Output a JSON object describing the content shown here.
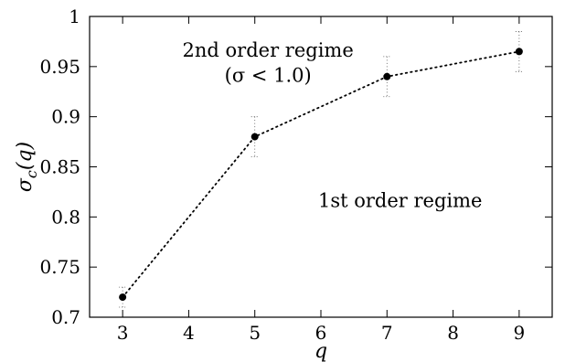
{
  "chart_data": {
    "type": "scatter",
    "title": "",
    "xlabel": "q",
    "ylabel": "σ_c(q)",
    "xlim": [
      2.5,
      9.5
    ],
    "ylim": [
      0.7,
      1.0
    ],
    "x_ticks": [
      "3",
      "4",
      "5",
      "6",
      "7",
      "8",
      "9"
    ],
    "y_ticks": [
      "0.7",
      "0.75",
      "0.8",
      "0.85",
      "0.9",
      "0.95",
      "1"
    ],
    "grid": false,
    "series": [
      {
        "x": [
          3,
          5,
          7,
          9
        ],
        "y": [
          0.72,
          0.88,
          0.94,
          0.965
        ],
        "error": [
          0.01,
          0.02,
          0.02,
          0.02
        ],
        "line_style": "dotted",
        "marker": "filled-circle",
        "color": "#000000"
      }
    ],
    "annotations": [
      {
        "text": "2nd order regime",
        "x": 5.2,
        "y": 0.96
      },
      {
        "text": "(σ < 1.0)",
        "x": 5.2,
        "y": 0.935
      },
      {
        "text": "1st order regime",
        "x": 7.2,
        "y": 0.81
      }
    ]
  }
}
